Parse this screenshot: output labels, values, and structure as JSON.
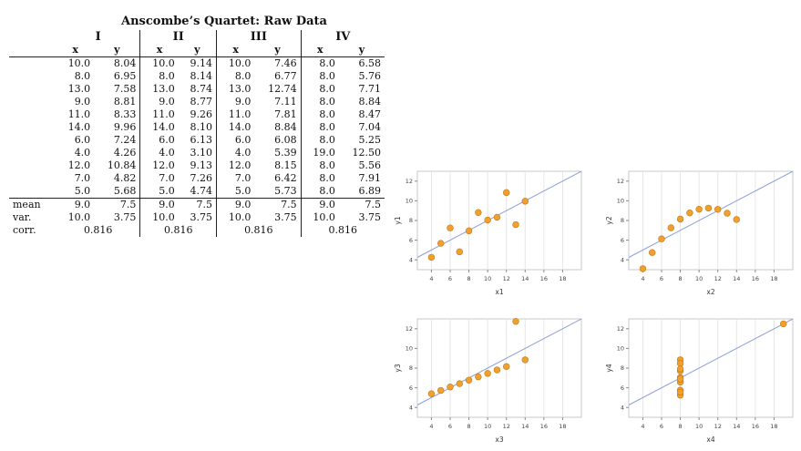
{
  "table": {
    "title": "Anscombe’s Quartet: Raw Data",
    "groups": [
      "I",
      "II",
      "III",
      "IV"
    ],
    "col_x": "x",
    "col_y": "y",
    "rows": [
      [
        "10.0",
        "8.04",
        "10.0",
        "9.14",
        "10.0",
        "7.46",
        "8.0",
        "6.58"
      ],
      [
        "8.0",
        "6.95",
        "8.0",
        "8.14",
        "8.0",
        "6.77",
        "8.0",
        "5.76"
      ],
      [
        "13.0",
        "7.58",
        "13.0",
        "8.74",
        "13.0",
        "12.74",
        "8.0",
        "7.71"
      ],
      [
        "9.0",
        "8.81",
        "9.0",
        "8.77",
        "9.0",
        "7.11",
        "8.0",
        "8.84"
      ],
      [
        "11.0",
        "8.33",
        "11.0",
        "9.26",
        "11.0",
        "7.81",
        "8.0",
        "8.47"
      ],
      [
        "14.0",
        "9.96",
        "14.0",
        "8.10",
        "14.0",
        "8.84",
        "8.0",
        "7.04"
      ],
      [
        "6.0",
        "7.24",
        "6.0",
        "6.13",
        "6.0",
        "6.08",
        "8.0",
        "5.25"
      ],
      [
        "4.0",
        "4.26",
        "4.0",
        "3.10",
        "4.0",
        "5.39",
        "19.0",
        "12.50"
      ],
      [
        "12.0",
        "10.84",
        "12.0",
        "9.13",
        "12.0",
        "8.15",
        "8.0",
        "5.56"
      ],
      [
        "7.0",
        "4.82",
        "7.0",
        "7.26",
        "7.0",
        "6.42",
        "8.0",
        "7.91"
      ],
      [
        "5.0",
        "5.68",
        "5.0",
        "4.74",
        "5.0",
        "5.73",
        "8.0",
        "6.89"
      ]
    ],
    "stats": [
      {
        "label": "mean",
        "values": [
          "9.0",
          "7.5",
          "9.0",
          "7.5",
          "9.0",
          "7.5",
          "9.0",
          "7.5"
        ]
      },
      {
        "label": "var.",
        "values": [
          "10.0",
          "3.75",
          "10.0",
          "3.75",
          "10.0",
          "3.75",
          "10.0",
          "3.75"
        ]
      }
    ],
    "corr_label": "corr.",
    "corr_values": [
      "0.816",
      "0.816",
      "0.816",
      "0.816"
    ]
  },
  "chart_data": [
    {
      "type": "scatter",
      "xlabel": "x1",
      "ylabel": "y1",
      "xlim": [
        2.5,
        20
      ],
      "ylim": [
        3,
        13
      ],
      "xticks": [
        4,
        6,
        8,
        10,
        12,
        14,
        16,
        18
      ],
      "yticks": [
        4,
        6,
        8,
        10,
        12
      ],
      "regression": {
        "intercept": 3.0,
        "slope": 0.5
      },
      "x": [
        10,
        8,
        13,
        9,
        11,
        14,
        6,
        4,
        12,
        7,
        5
      ],
      "y": [
        8.04,
        6.95,
        7.58,
        8.81,
        8.33,
        9.96,
        7.24,
        4.26,
        10.84,
        4.82,
        5.68
      ]
    },
    {
      "type": "scatter",
      "xlabel": "x2",
      "ylabel": "y2",
      "xlim": [
        2.5,
        20
      ],
      "ylim": [
        3,
        13
      ],
      "xticks": [
        4,
        6,
        8,
        10,
        12,
        14,
        16,
        18
      ],
      "yticks": [
        4,
        6,
        8,
        10,
        12
      ],
      "regression": {
        "intercept": 3.0,
        "slope": 0.5
      },
      "x": [
        10,
        8,
        13,
        9,
        11,
        14,
        6,
        4,
        12,
        7,
        5
      ],
      "y": [
        9.14,
        8.14,
        8.74,
        8.77,
        9.26,
        8.1,
        6.13,
        3.1,
        9.13,
        7.26,
        4.74
      ]
    },
    {
      "type": "scatter",
      "xlabel": "x3",
      "ylabel": "y3",
      "xlim": [
        2.5,
        20
      ],
      "ylim": [
        3,
        13
      ],
      "xticks": [
        4,
        6,
        8,
        10,
        12,
        14,
        16,
        18
      ],
      "yticks": [
        4,
        6,
        8,
        10,
        12
      ],
      "regression": {
        "intercept": 3.0,
        "slope": 0.5
      },
      "x": [
        10,
        8,
        13,
        9,
        11,
        14,
        6,
        4,
        12,
        7,
        5
      ],
      "y": [
        7.46,
        6.77,
        12.74,
        7.11,
        7.81,
        8.84,
        6.08,
        5.39,
        8.15,
        6.42,
        5.73
      ]
    },
    {
      "type": "scatter",
      "xlabel": "x4",
      "ylabel": "y4",
      "xlim": [
        2.5,
        20
      ],
      "ylim": [
        3,
        13
      ],
      "xticks": [
        4,
        6,
        8,
        10,
        12,
        14,
        16,
        18
      ],
      "yticks": [
        4,
        6,
        8,
        10,
        12
      ],
      "regression": {
        "intercept": 3.0,
        "slope": 0.5
      },
      "x": [
        8,
        8,
        8,
        8,
        8,
        8,
        8,
        19,
        8,
        8,
        8
      ],
      "y": [
        6.58,
        5.76,
        7.71,
        8.84,
        8.47,
        7.04,
        5.25,
        12.5,
        5.56,
        7.91,
        6.89
      ]
    }
  ],
  "colors": {
    "point": "#f0a030",
    "point_stroke": "#c47a10",
    "line": "#8da0d8",
    "grid": "#e6e6e6",
    "frame": "#c8c8c8"
  }
}
